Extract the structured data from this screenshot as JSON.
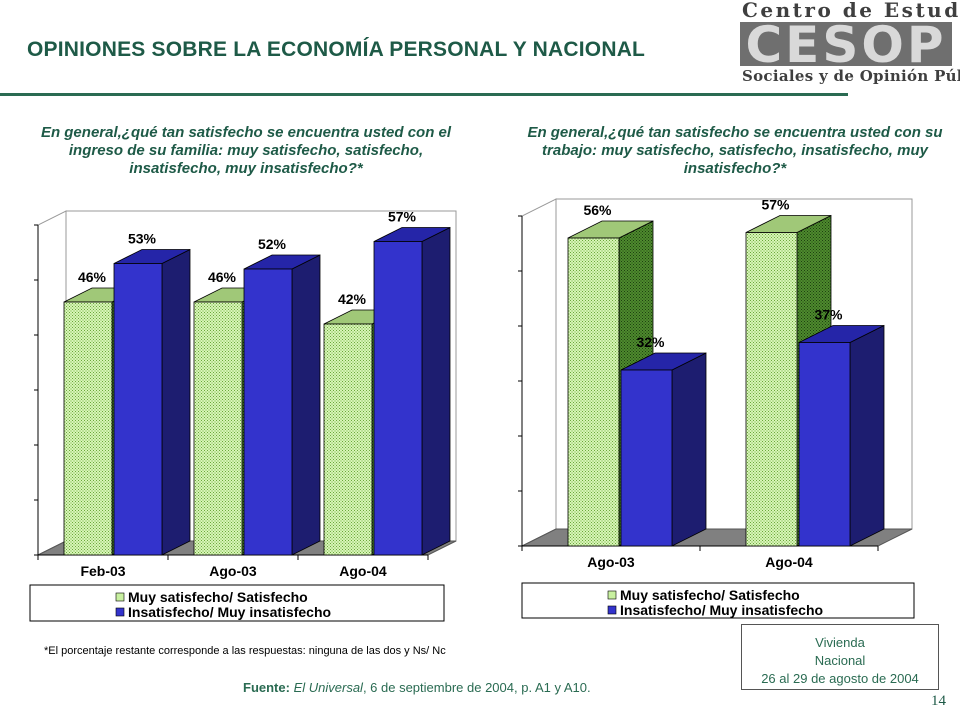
{
  "page": {
    "title": "OPINIONES SOBRE LA ECONOMÍA PERSONAL Y NACIONAL",
    "logo": {
      "top_text": "Centro de Estudios",
      "mark_text": "CESOP",
      "bottom_text": "Sociales y de Opinión Pública"
    },
    "footnote": "*El porcentaje restante corresponde a las respuestas: ninguna de las dos y Ns/ Nc",
    "source": {
      "label": "Fuente:",
      "publication": "El Universal",
      "rest": ", 6 de septiembre de 2004, p. A1 y A10."
    },
    "info_box": {
      "line1": "Vivienda",
      "line2": "Nacional",
      "line3": "26 al 29 de agosto de 2004"
    },
    "page_number": "14"
  },
  "colors": {
    "green_series": "#c8f0a0",
    "blue_series": "#3333cc",
    "title": "#1e5a47"
  },
  "chart_data": [
    {
      "type": "bar",
      "title": "En general,¿qué tan satisfecho se encuentra usted con el ingreso de su familia: muy satisfecho, satisfecho, insatisfecho, muy insatisfecho?*",
      "categories": [
        "Feb-03",
        "Ago-03",
        "Ago-04"
      ],
      "series": [
        {
          "name": "Muy satisfecho/ Satisfecho",
          "values": [
            46,
            46,
            42
          ]
        },
        {
          "name": "Insatisfecho/ Muy insatisfecho",
          "values": [
            53,
            52,
            57
          ]
        }
      ],
      "data_labels": [
        [
          "46%",
          "46%",
          "42%"
        ],
        [
          "53%",
          "52%",
          "57%"
        ]
      ],
      "ylim": [
        0,
        60
      ],
      "grid": false,
      "legend": "bottom"
    },
    {
      "type": "bar",
      "title": "En general,¿qué tan satisfecho se encuentra usted con su trabajo: muy satisfecho, satisfecho, insatisfecho, muy insatisfecho?*",
      "categories": [
        "Ago-03",
        "Ago-04"
      ],
      "series": [
        {
          "name": "Muy satisfecho/ Satisfecho",
          "values": [
            56,
            57
          ]
        },
        {
          "name": "Insatisfecho/ Muy insatisfecho",
          "values": [
            32,
            37
          ]
        }
      ],
      "data_labels": [
        [
          "56%",
          "57%"
        ],
        [
          "32%",
          "37%"
        ]
      ],
      "ylim": [
        0,
        60
      ],
      "grid": false,
      "legend": "bottom"
    }
  ]
}
